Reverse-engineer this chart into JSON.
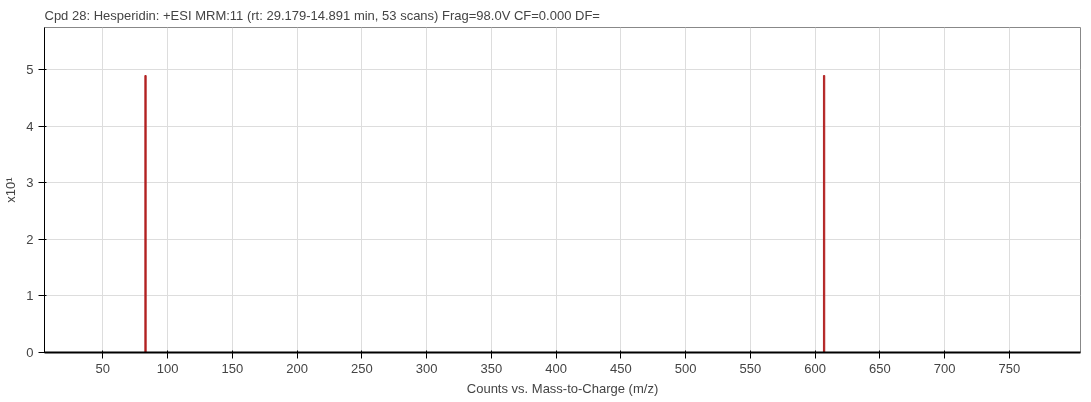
{
  "chart_data": {
    "type": "bar",
    "title": "Cpd 28: Hesperidin: +ESI MRM:11 (rt: 29.179-14.891 min, 53 scans) Frag=98.0V CF=0.000 DF=",
    "xlabel": "Counts vs. Mass-to-Charge (m/z)",
    "ylabel": "x10¹",
    "x": [
      83,
      607
    ],
    "values": [
      4.9,
      4.9
    ],
    "color": "#b22222",
    "xlim": [
      5,
      805
    ],
    "ylim": [
      0,
      5.75
    ],
    "xticks": [
      50,
      100,
      150,
      200,
      250,
      300,
      350,
      400,
      450,
      500,
      550,
      600,
      650,
      700,
      750
    ],
    "yticks": [
      0,
      1,
      2,
      3,
      4,
      5
    ],
    "grid": true
  }
}
